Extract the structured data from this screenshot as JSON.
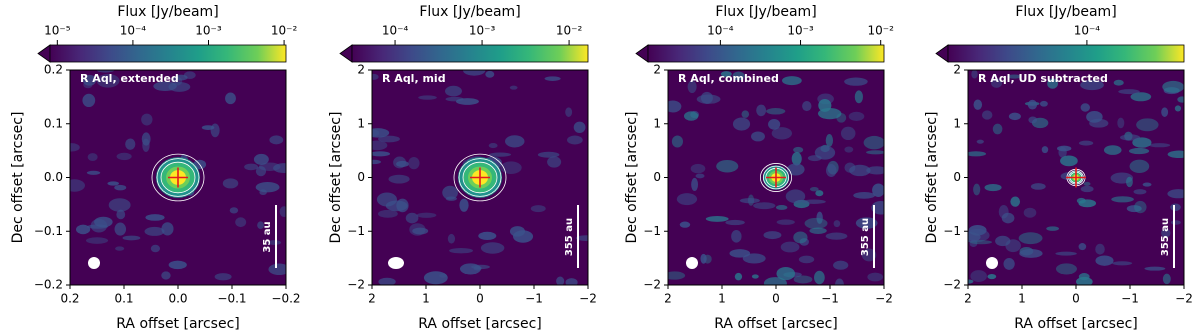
{
  "chart_data": [
    {
      "type": "image",
      "annotation": "R Aql, extended",
      "colorbar_label": "Flux [Jy/beam]",
      "colorbar_log": true,
      "clim": [
        8e-06,
        0.0106
      ],
      "cticks": [
        {
          "value": 1e-05,
          "label": "10⁻⁵"
        },
        {
          "value": 0.0001,
          "label": "10⁻⁴"
        },
        {
          "value": 0.001,
          "label": "10⁻³"
        },
        {
          "value": 0.01,
          "label": "10⁻²"
        }
      ],
      "x_label": "RA offset [arcsec]",
      "y_label": "Dec offset [arcsec]",
      "xlim": [
        0.2,
        -0.2
      ],
      "ylim": [
        -0.2,
        0.2
      ],
      "xticks": [
        0.2,
        0.1,
        {
          "value": 0,
          "label": "0.0"
        },
        {
          "value": -0.1,
          "label": "−0.1"
        },
        {
          "value": -0.2,
          "label": "−0.2"
        }
      ],
      "yticks": [
        {
          "value": -0.2,
          "label": "−0.2"
        },
        {
          "value": -0.1,
          "label": "−0.1"
        },
        {
          "value": 0,
          "label": "0.0"
        },
        0.1,
        0.2
      ],
      "scale_bar": "35 au"
    },
    {
      "type": "image",
      "annotation": "R Aql, mid",
      "colorbar_label": "Flux [Jy/beam]",
      "colorbar_log": true,
      "clim": [
        3.2e-05,
        0.0165
      ],
      "cticks": [
        {
          "value": 0.0001,
          "label": "10⁻⁴"
        },
        {
          "value": 0.001,
          "label": "10⁻³"
        },
        {
          "value": 0.01,
          "label": "10⁻²"
        }
      ],
      "x_label": "RA offset [arcsec]",
      "y_label": "Dec offset [arcsec]",
      "xlim": [
        2,
        -2
      ],
      "ylim": [
        -2,
        2
      ],
      "xticks": [
        2,
        1,
        0,
        {
          "value": -1,
          "label": "−1"
        },
        {
          "value": -2,
          "label": "−2"
        }
      ],
      "yticks": [
        {
          "value": -2,
          "label": "−2"
        },
        {
          "value": -1,
          "label": "−1"
        },
        0,
        1,
        2
      ],
      "scale_bar": "355 au"
    },
    {
      "type": "image",
      "annotation": "R Aql, combined",
      "colorbar_label": "Flux [Jy/beam]",
      "colorbar_log": true,
      "clim": [
        1.25e-05,
        0.011
      ],
      "cticks": [
        {
          "value": 0.0001,
          "label": "10⁻⁴"
        },
        {
          "value": 0.001,
          "label": "10⁻³"
        },
        {
          "value": 0.01,
          "label": "10⁻²"
        }
      ],
      "x_label": "RA offset [arcsec]",
      "y_label": "Dec offset [arcsec]",
      "xlim": [
        2,
        -2
      ],
      "ylim": [
        -2,
        2
      ],
      "xticks": [
        2,
        1,
        0,
        {
          "value": -1,
          "label": "−1"
        },
        {
          "value": -2,
          "label": "−2"
        }
      ],
      "yticks": [
        {
          "value": -2,
          "label": "−2"
        },
        {
          "value": -1,
          "label": "−1"
        },
        0,
        1,
        2
      ],
      "scale_bar": "355 au"
    },
    {
      "type": "image",
      "annotation": "R Aql, UD subtracted",
      "colorbar_label": "Flux [Jy/beam]",
      "colorbar_log": true,
      "clim": [
        1e-05,
        0.0005
      ],
      "cticks": [
        {
          "value": 0.0001,
          "label": "10⁻⁴"
        }
      ],
      "x_label": "RA offset [arcsec]",
      "y_label": "Dec offset [arcsec]",
      "xlim": [
        2,
        -2
      ],
      "ylim": [
        -2,
        2
      ],
      "xticks": [
        2,
        1,
        0,
        {
          "value": -1,
          "label": "−1"
        },
        {
          "value": -2,
          "label": "−2"
        }
      ],
      "yticks": [
        {
          "value": -2,
          "label": "−2"
        },
        {
          "value": -1,
          "label": "−1"
        },
        0,
        1,
        2
      ],
      "scale_bar": "355 au"
    }
  ]
}
